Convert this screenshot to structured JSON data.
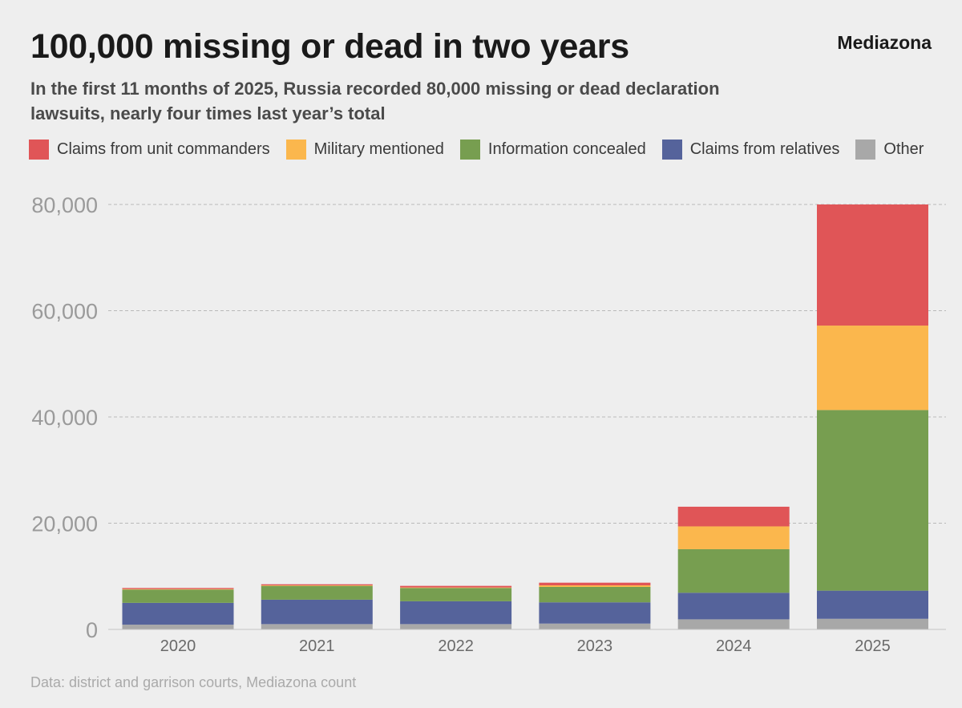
{
  "header": {
    "title": "100,000 missing or dead in two years",
    "brand": "Mediazona",
    "subtitle": "In the first 11 months of 2025, Russia recorded 80,000 missing or dead declaration lawsuits, nearly four times last year’s total"
  },
  "footer": {
    "source": "Data: district and garrison courts, Mediazona count"
  },
  "chart_data": {
    "type": "bar",
    "stacked": true,
    "title": "100,000 missing or dead in two years",
    "xlabel": "",
    "ylabel": "",
    "ylim": [
      0,
      80000
    ],
    "yticks": [
      0,
      20000,
      40000,
      60000,
      80000
    ],
    "ytick_labels": [
      "0",
      "20,000",
      "40,000",
      "60,000",
      "80,000"
    ],
    "grid": true,
    "legend_position": "top",
    "categories": [
      "2020",
      "2021",
      "2022",
      "2023",
      "2024",
      "2025"
    ],
    "series": [
      {
        "name": "Other",
        "color": "#a8a8a8",
        "values": [
          900,
          1000,
          1000,
          1100,
          1900,
          2000
        ]
      },
      {
        "name": "Claims from relatives",
        "color": "#55639b",
        "values": [
          4100,
          4600,
          4300,
          4000,
          5000,
          5300
        ]
      },
      {
        "name": "Information concealed",
        "color": "#779e50",
        "values": [
          2500,
          2600,
          2500,
          2900,
          8200,
          34000
        ]
      },
      {
        "name": "Military mentioned",
        "color": "#fbb74d",
        "values": [
          100,
          100,
          100,
          300,
          4300,
          15900
        ]
      },
      {
        "name": "Claims from unit commanders",
        "color": "#e05557",
        "values": [
          200,
          200,
          300,
          500,
          3700,
          22800
        ]
      }
    ]
  },
  "legend": [
    {
      "label": "Claims from unit commanders",
      "color": "#e05557"
    },
    {
      "label": "Military mentioned",
      "color": "#fbb74d"
    },
    {
      "label": "Information concealed",
      "color": "#779e50"
    },
    {
      "label": "Claims from relatives",
      "color": "#55639b"
    },
    {
      "label": "Other",
      "color": "#a8a8a8"
    }
  ]
}
